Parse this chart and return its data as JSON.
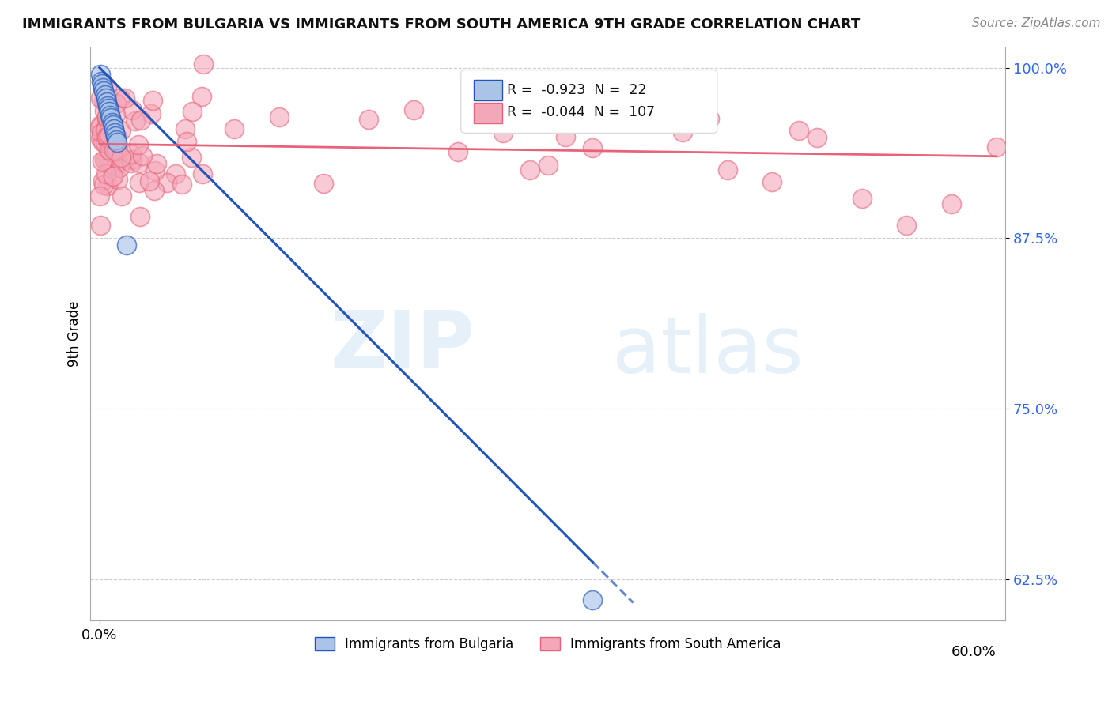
{
  "title": "IMMIGRANTS FROM BULGARIA VS IMMIGRANTS FROM SOUTH AMERICA 9TH GRADE CORRELATION CHART",
  "source": "Source: ZipAtlas.com",
  "ylabel": "9th Grade",
  "color_bulgaria": "#aac4e8",
  "color_south_america": "#f4a7b9",
  "trendline_bulgaria": "#2255bb",
  "trendline_south_america": "#e8637a",
  "legend_R_bulgaria": "-0.923",
  "legend_N_bulgaria": "22",
  "legend_R_south_america": "-0.044",
  "legend_N_south_america": "107",
  "legend_label_bulgaria": "Immigrants from Bulgaria",
  "legend_label_south_america": "Immigrants from South America",
  "watermark_zip": "ZIP",
  "watermark_atlas": "atlas",
  "bg_color": "#ffffff",
  "grid_color": "#cccccc",
  "ytick_positions": [
    0.625,
    0.75,
    0.875,
    1.0
  ],
  "ytick_labels": [
    "62.5%",
    "75.0%",
    "87.5%",
    "100.0%"
  ],
  "ymin": 0.595,
  "ymax": 1.015,
  "xmin": -0.01,
  "xmax": 1.01,
  "xtick_left_label": "0.0%",
  "xtick_right_label": "60.0%",
  "bul_trend_x0": 0.0,
  "bul_trend_y0": 1.0,
  "bul_trend_x1": 0.595,
  "bul_trend_y1": 0.608,
  "sa_trend_x0": 0.0,
  "sa_trend_y0": 0.944,
  "sa_trend_x1": 1.0,
  "sa_trend_y1": 0.935
}
